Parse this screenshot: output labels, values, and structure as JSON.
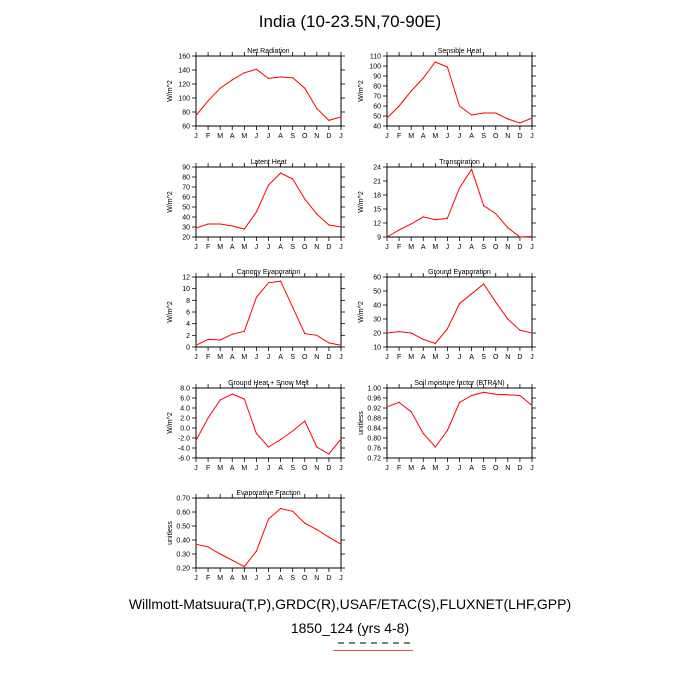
{
  "title": "India (10-23.5N,70-90E)",
  "footer": {
    "line1": "Willmott-Matsuura(T,P),GRDC(R),USAF/ETAC(S),FLUXNET(LHF,GPP)",
    "line2": "1850_124 (yrs 4-8)"
  },
  "line_color": "#ff0000",
  "months": [
    "J",
    "F",
    "M",
    "A",
    "M",
    "J",
    "J",
    "A",
    "S",
    "O",
    "N",
    "D",
    "J"
  ],
  "chart_data": [
    {
      "type": "line",
      "title": "Net Radiation",
      "ylabel": "W/m^2",
      "ylim": [
        60,
        160
      ],
      "yticks": [
        60,
        80,
        100,
        120,
        140,
        160
      ],
      "yticklabels": [
        "60",
        "80",
        "100",
        "120",
        "140",
        "160"
      ],
      "values": [
        75,
        96,
        114,
        126,
        136,
        141,
        128,
        130,
        129,
        114,
        85,
        68,
        73
      ]
    },
    {
      "type": "line",
      "title": "Sensible Heat",
      "ylabel": "W/m^2",
      "ylim": [
        40,
        110
      ],
      "yticks": [
        40,
        50,
        60,
        70,
        80,
        90,
        100,
        110
      ],
      "yticklabels": [
        "40",
        "50",
        "60",
        "70",
        "80",
        "90",
        "100",
        "110"
      ],
      "values": [
        48,
        60,
        75,
        88,
        104,
        99,
        60,
        51,
        53,
        53,
        47,
        43,
        48
      ]
    },
    {
      "type": "line",
      "title": "Latent Heat",
      "ylabel": "W/m^2",
      "ylim": [
        20,
        90
      ],
      "yticks": [
        20,
        30,
        40,
        50,
        60,
        70,
        80,
        90
      ],
      "yticklabels": [
        "20",
        "30",
        "40",
        "50",
        "60",
        "70",
        "80",
        "90"
      ],
      "values": [
        29,
        33,
        33,
        31,
        28,
        45,
        72,
        84,
        78,
        58,
        43,
        32,
        30
      ]
    },
    {
      "type": "line",
      "title": "Transpiration",
      "ylabel": "W/m^2",
      "ylim": [
        9,
        24
      ],
      "yticks": [
        9,
        12,
        15,
        18,
        21,
        24
      ],
      "yticklabels": [
        "9",
        "12",
        "15",
        "18",
        "21",
        "24"
      ],
      "values": [
        9.0,
        10.5,
        11.8,
        13.3,
        12.7,
        13.0,
        19.5,
        23.5,
        15.7,
        14.0,
        11.0,
        9.0,
        9.1
      ]
    },
    {
      "type": "line",
      "title": "Canopy Evaporation",
      "ylabel": "W/m^2",
      "ylim": [
        0,
        12
      ],
      "yticks": [
        0,
        2,
        4,
        6,
        8,
        10,
        12
      ],
      "yticklabels": [
        "0",
        "2",
        "4",
        "6",
        "8",
        "10",
        "12"
      ],
      "values": [
        0.3,
        1.3,
        1.2,
        2.2,
        2.7,
        8.5,
        11.0,
        11.3,
        6.8,
        2.3,
        2.0,
        0.7,
        0.3
      ]
    },
    {
      "type": "line",
      "title": "Ground Evaporation",
      "ylabel": "W/m^2",
      "ylim": [
        10,
        60
      ],
      "yticks": [
        10,
        20,
        30,
        40,
        50,
        60
      ],
      "yticklabels": [
        "10",
        "20",
        "30",
        "40",
        "50",
        "60"
      ],
      "values": [
        20,
        21,
        20,
        15.5,
        12.5,
        23,
        41,
        48,
        55,
        42,
        30,
        22,
        20
      ]
    },
    {
      "type": "line",
      "title": "Ground Heat + Snow Melt",
      "ylabel": "W/m^2",
      "ylim": [
        -6,
        8
      ],
      "yticks": [
        -6,
        -4,
        -2,
        0,
        2,
        4,
        6,
        8
      ],
      "yticklabels": [
        "-6.0",
        "-4.0",
        "-2.0",
        "0.0",
        "2.0",
        "4.0",
        "6.0",
        "8.0"
      ],
      "values": [
        -2.5,
        2.0,
        5.6,
        6.8,
        5.8,
        -1.1,
        -3.8,
        -2.3,
        -0.6,
        1.4,
        -3.8,
        -5.2,
        -2.2
      ]
    },
    {
      "type": "line",
      "title": "Soil moisture factor (BTRAN)",
      "ylabel": "unitless",
      "ylim": [
        0.72,
        1.0
      ],
      "yticks": [
        0.72,
        0.76,
        0.8,
        0.84,
        0.88,
        0.92,
        0.96,
        1.0
      ],
      "yticklabels": [
        "0.72",
        "0.76",
        "0.80",
        "0.84",
        "0.88",
        "0.92",
        "0.96",
        "1.00"
      ],
      "values": [
        0.925,
        0.943,
        0.905,
        0.818,
        0.764,
        0.83,
        0.942,
        0.97,
        0.983,
        0.975,
        0.973,
        0.97,
        0.93
      ]
    },
    {
      "type": "line",
      "title": "Evaporative Fraction",
      "ylabel": "unitless",
      "ylim": [
        0.2,
        0.7
      ],
      "yticks": [
        0.2,
        0.3,
        0.4,
        0.5,
        0.6,
        0.7
      ],
      "yticklabels": [
        "0.20",
        "0.30",
        "0.40",
        "0.50",
        "0.60",
        "0.70"
      ],
      "values": [
        0.37,
        0.35,
        0.3,
        0.255,
        0.21,
        0.32,
        0.55,
        0.625,
        0.605,
        0.52,
        0.475,
        0.42,
        0.37
      ]
    }
  ]
}
